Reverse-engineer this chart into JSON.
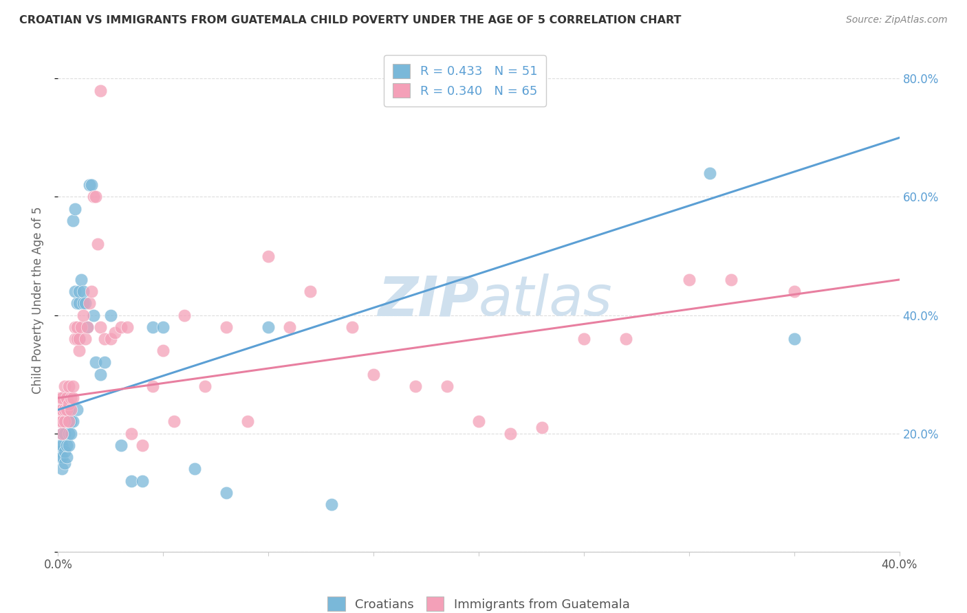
{
  "title": "CROATIAN VS IMMIGRANTS FROM GUATEMALA CHILD POVERTY UNDER THE AGE OF 5 CORRELATION CHART",
  "source": "Source: ZipAtlas.com",
  "ylabel_text": "Child Poverty Under the Age of 5",
  "xlim": [
    0.0,
    0.4
  ],
  "ylim": [
    0.0,
    0.85
  ],
  "croatian_color": "#7ab8d9",
  "guatemalan_color": "#f4a0b8",
  "trendline_croatian_color": "#5b9fd4",
  "trendline_guatemalan_color": "#e87fa0",
  "watermark_color": "#cfe0ee",
  "R_croatian": 0.433,
  "N_croatian": 51,
  "R_guatemalan": 0.34,
  "N_guatemalan": 65,
  "cro_trend_x0": 0.0,
  "cro_trend_y0": 0.24,
  "cro_trend_x1": 0.4,
  "cro_trend_y1": 0.7,
  "gua_trend_x0": 0.0,
  "gua_trend_y0": 0.26,
  "gua_trend_x1": 0.4,
  "gua_trend_y1": 0.46,
  "cro_x": [
    0.001,
    0.001,
    0.001,
    0.002,
    0.002,
    0.002,
    0.002,
    0.003,
    0.003,
    0.003,
    0.004,
    0.004,
    0.004,
    0.005,
    0.005,
    0.005,
    0.005,
    0.006,
    0.006,
    0.007,
    0.007,
    0.008,
    0.008,
    0.009,
    0.009,
    0.01,
    0.01,
    0.01,
    0.011,
    0.012,
    0.012,
    0.013,
    0.014,
    0.015,
    0.016,
    0.017,
    0.018,
    0.02,
    0.022,
    0.025,
    0.03,
    0.035,
    0.04,
    0.045,
    0.05,
    0.065,
    0.08,
    0.1,
    0.13,
    0.31,
    0.35
  ],
  "cro_y": [
    0.16,
    0.17,
    0.18,
    0.14,
    0.16,
    0.18,
    0.2,
    0.15,
    0.17,
    0.2,
    0.16,
    0.18,
    0.22,
    0.18,
    0.2,
    0.22,
    0.24,
    0.2,
    0.22,
    0.22,
    0.56,
    0.58,
    0.44,
    0.42,
    0.24,
    0.36,
    0.42,
    0.44,
    0.46,
    0.42,
    0.44,
    0.42,
    0.38,
    0.62,
    0.62,
    0.4,
    0.32,
    0.3,
    0.32,
    0.4,
    0.18,
    0.12,
    0.12,
    0.38,
    0.38,
    0.14,
    0.1,
    0.38,
    0.08,
    0.64,
    0.36
  ],
  "gua_x": [
    0.001,
    0.001,
    0.001,
    0.002,
    0.002,
    0.002,
    0.002,
    0.003,
    0.003,
    0.003,
    0.004,
    0.004,
    0.005,
    0.005,
    0.005,
    0.006,
    0.006,
    0.007,
    0.007,
    0.008,
    0.008,
    0.009,
    0.009,
    0.01,
    0.01,
    0.011,
    0.012,
    0.013,
    0.014,
    0.015,
    0.016,
    0.017,
    0.018,
    0.019,
    0.02,
    0.022,
    0.025,
    0.027,
    0.03,
    0.033,
    0.035,
    0.04,
    0.045,
    0.05,
    0.055,
    0.06,
    0.07,
    0.08,
    0.09,
    0.1,
    0.11,
    0.12,
    0.14,
    0.15,
    0.17,
    0.185,
    0.2,
    0.215,
    0.23,
    0.25,
    0.27,
    0.3,
    0.32,
    0.35,
    0.02
  ],
  "gua_y": [
    0.22,
    0.24,
    0.26,
    0.2,
    0.22,
    0.24,
    0.26,
    0.22,
    0.24,
    0.28,
    0.24,
    0.26,
    0.22,
    0.25,
    0.28,
    0.24,
    0.26,
    0.26,
    0.28,
    0.36,
    0.38,
    0.36,
    0.38,
    0.34,
    0.36,
    0.38,
    0.4,
    0.36,
    0.38,
    0.42,
    0.44,
    0.6,
    0.6,
    0.52,
    0.38,
    0.36,
    0.36,
    0.37,
    0.38,
    0.38,
    0.2,
    0.18,
    0.28,
    0.34,
    0.22,
    0.4,
    0.28,
    0.38,
    0.22,
    0.5,
    0.38,
    0.44,
    0.38,
    0.3,
    0.28,
    0.28,
    0.22,
    0.2,
    0.21,
    0.36,
    0.36,
    0.46,
    0.46,
    0.44,
    0.78
  ]
}
